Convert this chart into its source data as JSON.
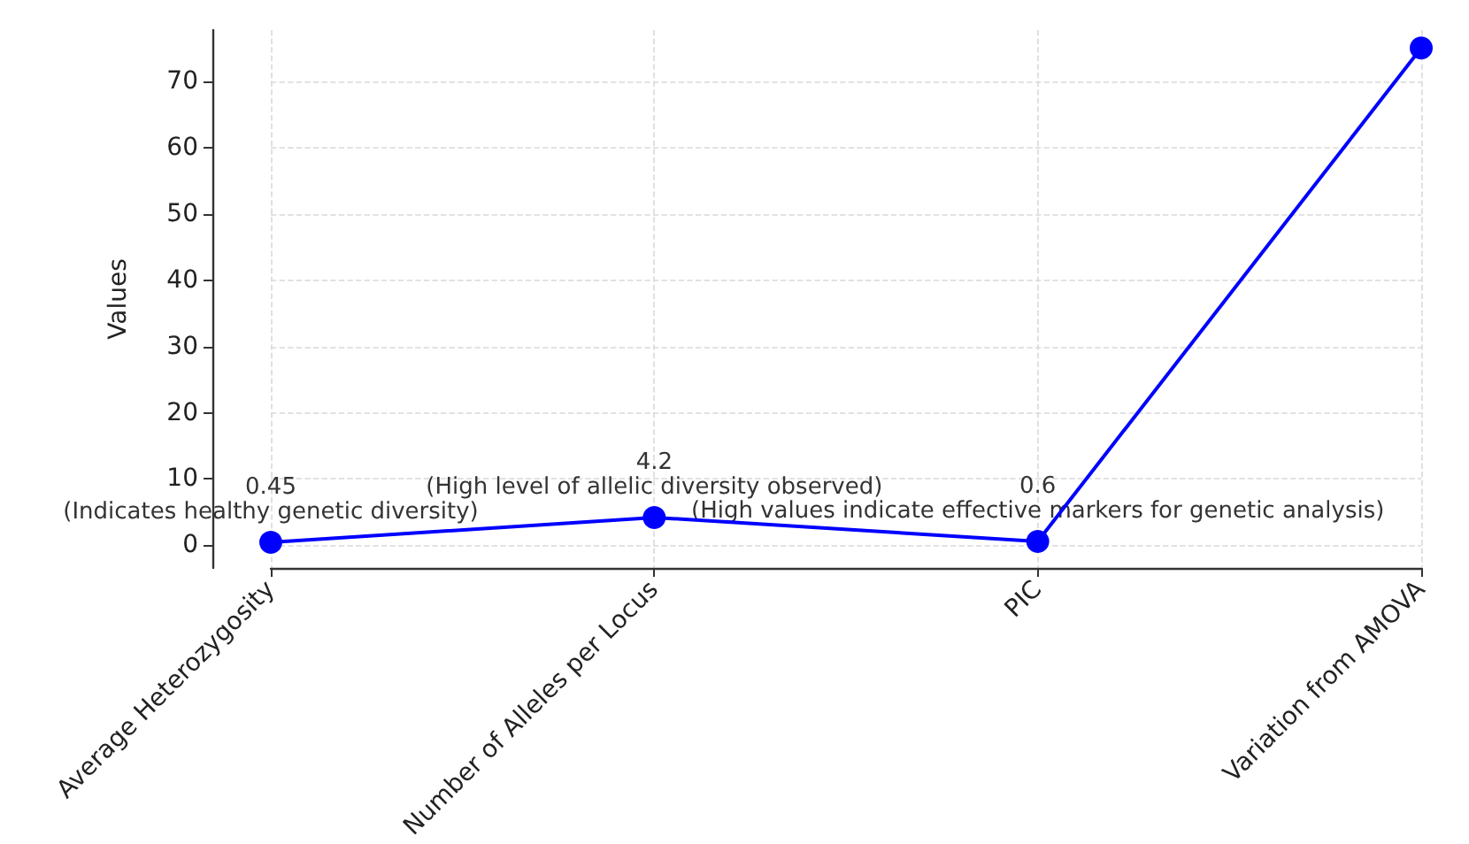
{
  "chart_data": {
    "type": "line",
    "ylabel": "Values",
    "categories": [
      "Average Heterozygosity",
      "Number of Alleles per Locus",
      "PIC",
      "Variation from AMOVA"
    ],
    "series": [
      {
        "color": "#0000ff",
        "values": [
          0.45,
          4.2,
          0.6,
          75
        ],
        "value_labels": [
          "0.45",
          "4.2",
          "0.6",
          null
        ]
      }
    ],
    "annotations": [
      "(Indicates healthy genetic diversity)",
      "(High level of allelic diversity observed)",
      "(High values indicate effective markers for genetic analysis)"
    ],
    "ylim": [
      -3.4,
      77.7
    ],
    "yticks": [
      0,
      10,
      20,
      30,
      40,
      50,
      60,
      70
    ],
    "grid": true,
    "marker": "circle",
    "line_style": "solid"
  }
}
